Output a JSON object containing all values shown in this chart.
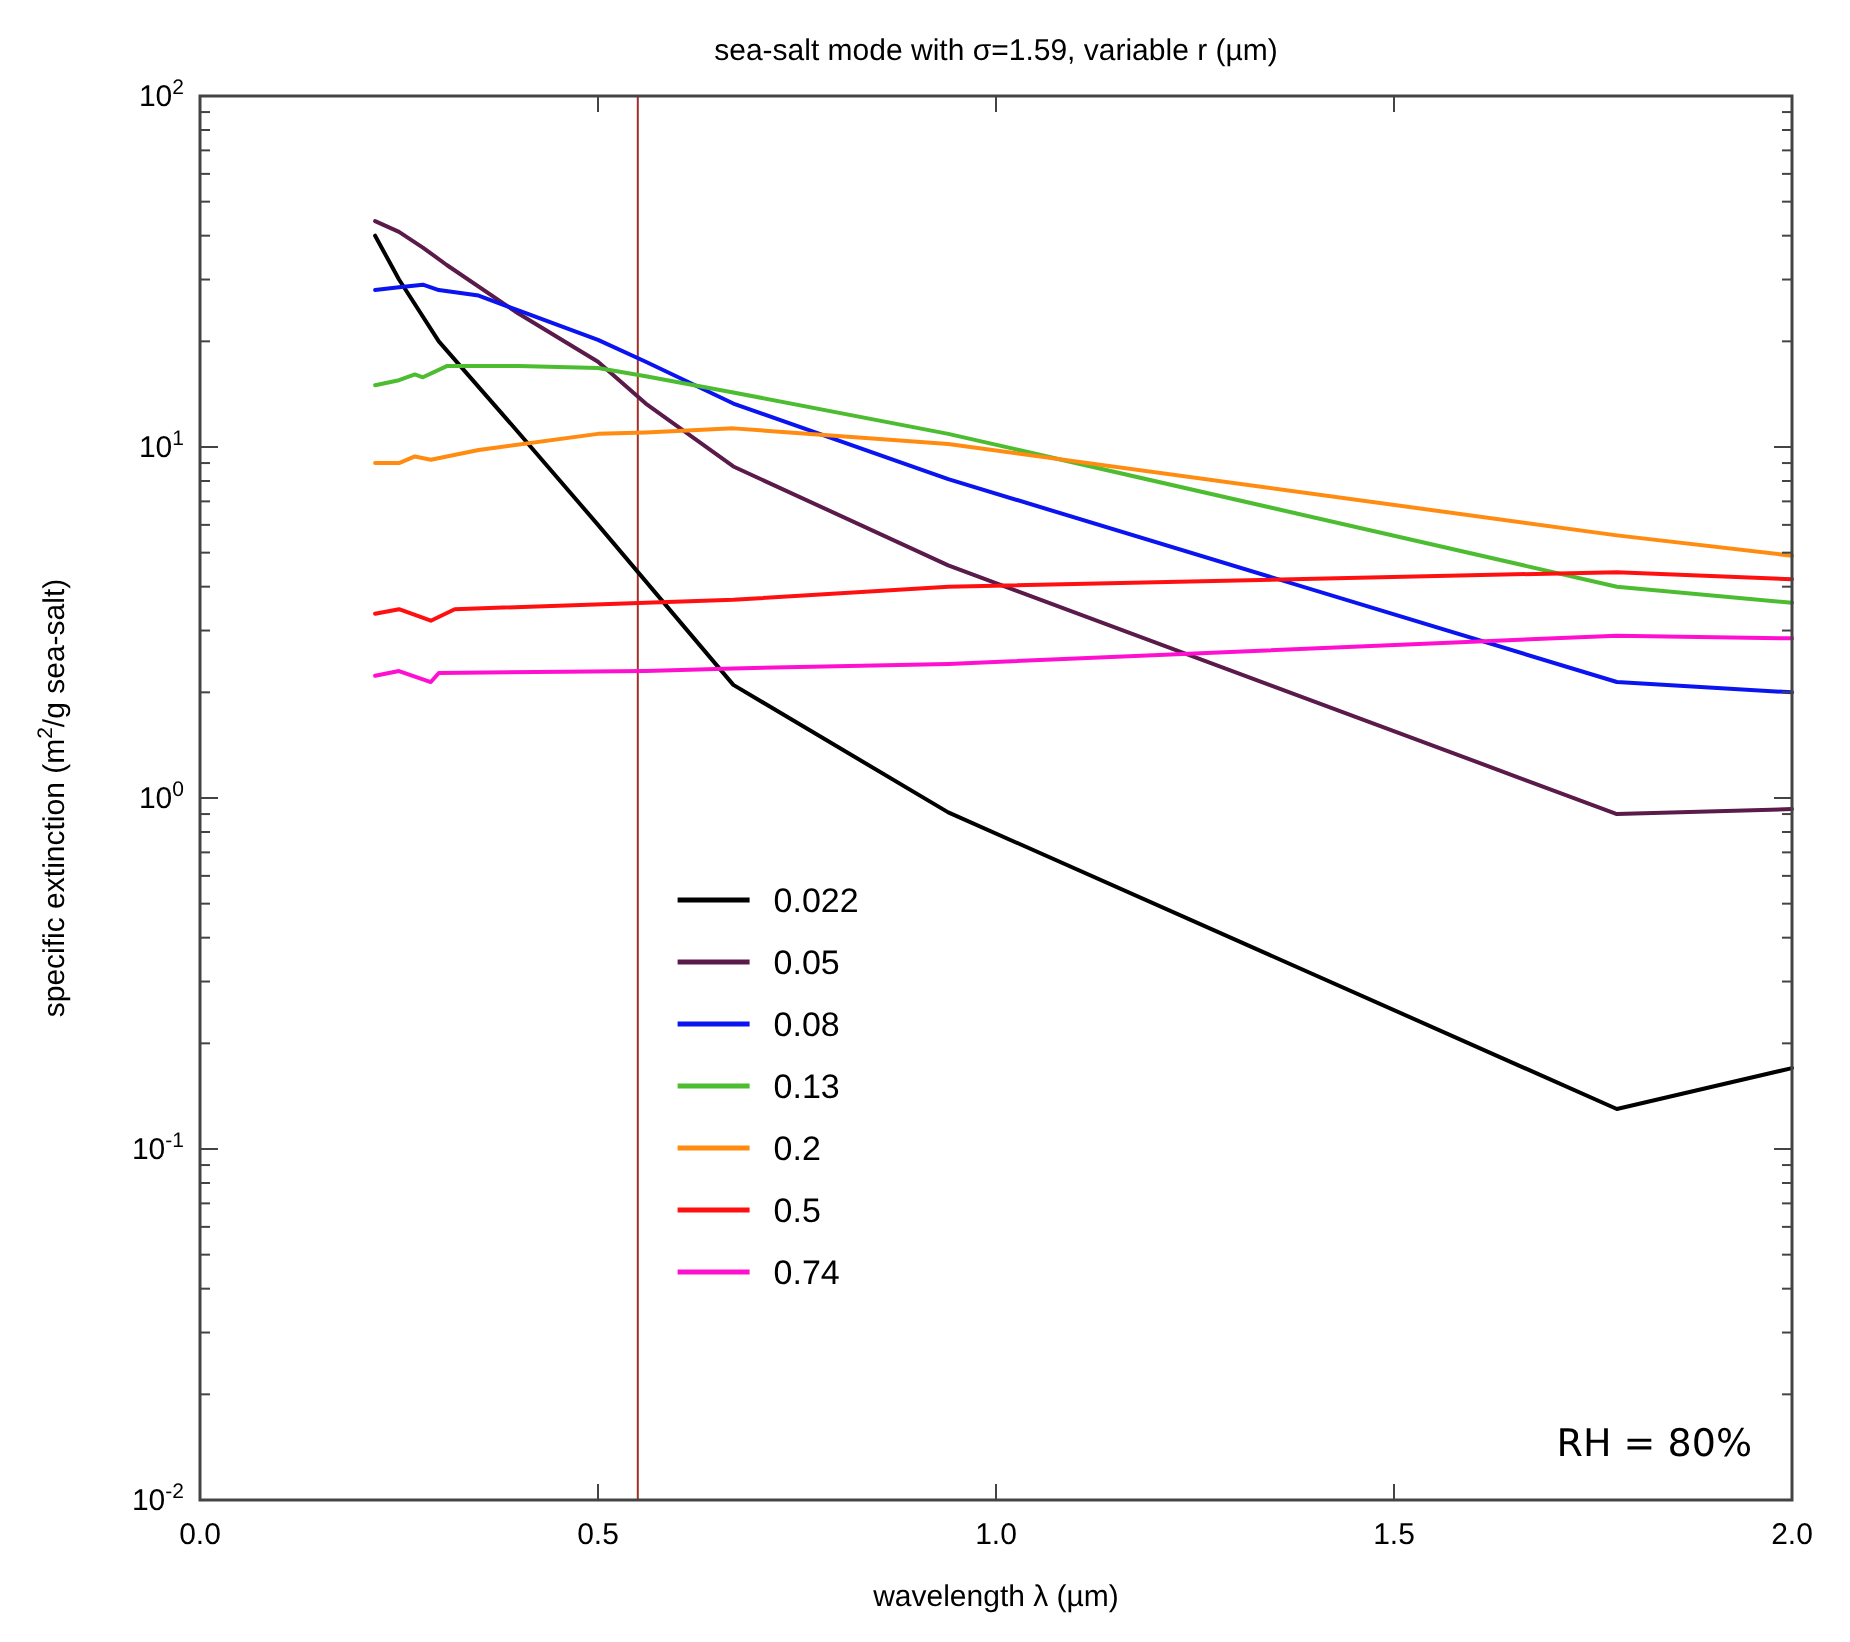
{
  "chart_data": {
    "type": "line",
    "title": "sea-salt mode with σ=1.59, variable r (µm)",
    "xlabel": "wavelength λ (µm)",
    "ylabel": "specific extinction (m$^{2}$/g sea-salt)",
    "log": "y",
    "xlim": [
      0,
      2
    ],
    "ylim": [
      0.01,
      100
    ],
    "xticks": [
      {
        "value": 0,
        "label": "0.0"
      },
      0.5,
      {
        "value": 1,
        "label": "1.0"
      },
      1.5,
      {
        "value": 2,
        "label": "2.0"
      }
    ],
    "yticks": [
      {
        "value": 0.01,
        "label": "10$^{-2}$"
      },
      {
        "value": 0.1,
        "label": "10$^{-1}$"
      },
      {
        "value": 1,
        "label": "10$^{0}$"
      },
      {
        "value": 10,
        "label": "10$^{1}$"
      },
      {
        "value": 100,
        "label": "10$^{2}$"
      }
    ],
    "grid": false,
    "legend": "bottom left",
    "marker": "none",
    "line_style": "solid",
    "ref_lines": [
      {
        "axis": "x",
        "value": 0.55,
        "color": "#a0302a"
      }
    ],
    "annotations": [
      "RH = 80%"
    ],
    "series": [
      {
        "name": "0.022",
        "color": "#000000",
        "x": [
          0.22,
          0.25,
          0.3,
          0.4,
          0.5,
          0.67,
          0.94,
          1.78,
          2.0
        ],
        "values": [
          40,
          30,
          20,
          11,
          6,
          2.1,
          0.91,
          0.13,
          0.17
        ]
      },
      {
        "name": "0.05",
        "color": "#5a1a4a",
        "x": [
          0.22,
          0.25,
          0.28,
          0.31,
          0.4,
          0.5,
          0.56,
          0.67,
          0.94,
          1.78,
          2.0
        ],
        "values": [
          44,
          41,
          37,
          33,
          24,
          17.5,
          13.3,
          8.8,
          4.6,
          0.9,
          0.93
        ]
      },
      {
        "name": "0.08",
        "color": "#0a14f0",
        "x": [
          0.22,
          0.25,
          0.28,
          0.3,
          0.35,
          0.4,
          0.5,
          0.56,
          0.67,
          0.94,
          1.78,
          2.0
        ],
        "values": [
          28,
          28.5,
          29,
          28,
          27,
          24.5,
          20.2,
          17.5,
          13.3,
          8.1,
          2.14,
          2.0
        ]
      },
      {
        "name": "0.13",
        "color": "#4cbc30",
        "x": [
          0.22,
          0.25,
          0.27,
          0.28,
          0.31,
          0.4,
          0.5,
          0.56,
          0.67,
          0.94,
          1.78,
          2.0
        ],
        "values": [
          15,
          15.5,
          16.1,
          15.8,
          17,
          17,
          16.8,
          15.9,
          14.3,
          10.9,
          4.0,
          3.6
        ]
      },
      {
        "name": "0.2",
        "color": "#ff8c10",
        "x": [
          0.22,
          0.25,
          0.27,
          0.29,
          0.35,
          0.5,
          0.56,
          0.67,
          0.94,
          1.78,
          2.0
        ],
        "values": [
          9,
          9,
          9.4,
          9.2,
          9.8,
          10.9,
          11,
          11.3,
          10.2,
          5.6,
          4.9
        ]
      },
      {
        "name": "0.5",
        "color": "#ff1010",
        "x": [
          0.22,
          0.25,
          0.29,
          0.32,
          0.56,
          0.67,
          0.94,
          1.78,
          2.0
        ],
        "values": [
          3.35,
          3.45,
          3.2,
          3.45,
          3.6,
          3.67,
          4.0,
          4.4,
          4.2
        ]
      },
      {
        "name": "0.74",
        "color": "#ff10d0",
        "x": [
          0.22,
          0.25,
          0.29,
          0.3,
          0.56,
          0.67,
          0.94,
          1.78,
          2.0
        ],
        "values": [
          2.23,
          2.3,
          2.14,
          2.27,
          2.3,
          2.34,
          2.41,
          2.9,
          2.85
        ]
      }
    ]
  }
}
